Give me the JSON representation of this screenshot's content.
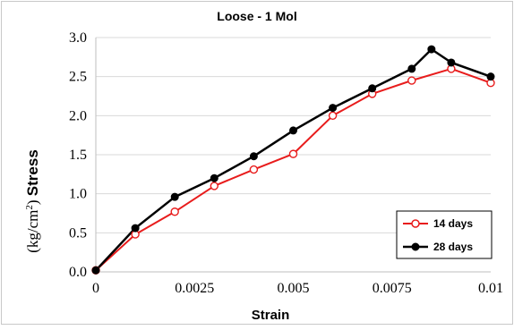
{
  "chart_data": {
    "type": "line",
    "title": "Loose - 1 Mol",
    "xlabel": "Strain",
    "ylabel_prefix": "(kg/cm",
    "ylabel_sup": "2",
    "ylabel_suffix": ") ",
    "ylabel_bold": "Stress",
    "xlim": [
      0,
      0.01
    ],
    "ylim": [
      0,
      3.0
    ],
    "x_ticks": [
      0,
      0.0025,
      0.005,
      0.0075,
      0.01
    ],
    "x_tick_labels": [
      "0",
      "0.0025",
      "0.005",
      "0.0075",
      "0.01"
    ],
    "y_ticks": [
      0,
      0.5,
      1.0,
      1.5,
      2.0,
      2.5,
      3.0
    ],
    "y_tick_labels": [
      "0.0",
      "0.5",
      "1.0",
      "1.5",
      "2.0",
      "2.5",
      "3.0"
    ],
    "grid": "horizontal",
    "legend_position": "bottom-right",
    "series": [
      {
        "name": "14 days",
        "color": "#e81c1c",
        "marker": "open-circle",
        "x": [
          0,
          0.001,
          0.002,
          0.003,
          0.004,
          0.005,
          0.006,
          0.007,
          0.008,
          0.009,
          0.01
        ],
        "y": [
          0.02,
          0.48,
          0.77,
          1.1,
          1.31,
          1.51,
          2.0,
          2.28,
          2.45,
          2.6,
          2.42
        ]
      },
      {
        "name": "28 days",
        "color": "#000000",
        "marker": "filled-circle",
        "x": [
          0,
          0.001,
          0.002,
          0.003,
          0.004,
          0.005,
          0.006,
          0.007,
          0.008,
          0.0085,
          0.009,
          0.01
        ],
        "y": [
          0.02,
          0.56,
          0.96,
          1.2,
          1.48,
          1.81,
          2.1,
          2.35,
          2.6,
          2.85,
          2.68,
          2.5
        ]
      }
    ]
  }
}
